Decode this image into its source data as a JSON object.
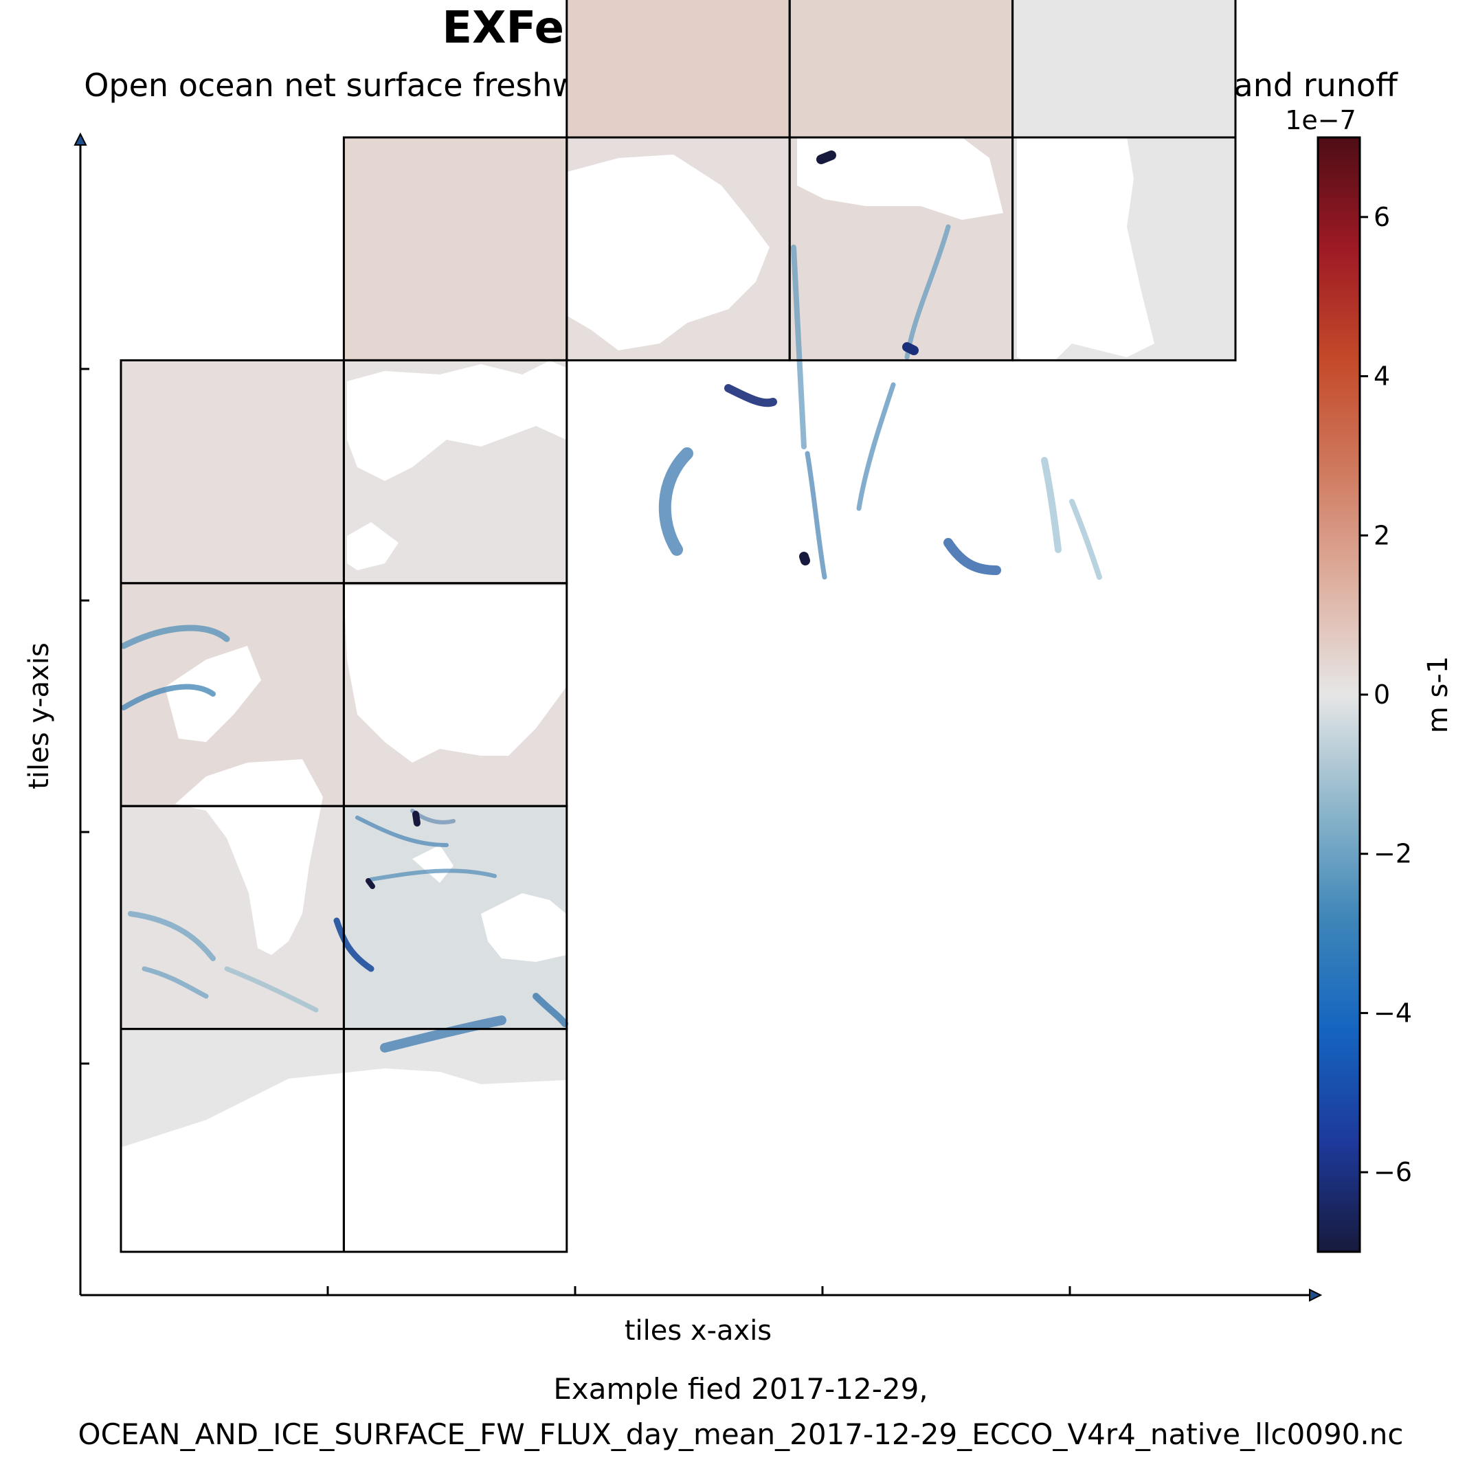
{
  "chart_data": {
    "type": "heatmap",
    "title": "EXFempmr (Daily Mean)",
    "subtitle": "Open ocean net surface freshwater flux from precipitation, evaporation, and runoff",
    "xlabel": "tiles x-axis",
    "ylabel": "tiles y-axis",
    "colorbar": {
      "label": "m s-1",
      "offset_label": "1e−7",
      "range": [
        -7,
        7
      ],
      "ticks": [
        -6,
        -4,
        -2,
        0,
        2,
        4,
        6
      ],
      "tick_labels": [
        "−6",
        "−4",
        "−2",
        "0",
        "2",
        "4",
        "6"
      ],
      "colors": [
        "#171a3d",
        "#1d3a9c",
        "#1565c0",
        "#3f86b8",
        "#8fb7cb",
        "#e6e6e6",
        "#deb0a0",
        "#cf7a5f",
        "#c44a2a",
        "#9e1a25",
        "#4e0d15"
      ]
    },
    "tiles": [
      {
        "col": 0,
        "row": 0,
        "mean": 0.0
      },
      {
        "col": 1,
        "row": 0,
        "mean": 0.0
      },
      {
        "col": 0,
        "row": 1,
        "mean": 0.1
      },
      {
        "col": 1,
        "row": 1,
        "mean": -0.2
      },
      {
        "col": 0,
        "row": 2,
        "mean": 0.3
      },
      {
        "col": 1,
        "row": 2,
        "mean": 0.2
      },
      {
        "col": 0,
        "row": 3,
        "mean": 0.2
      },
      {
        "col": 1,
        "row": 3,
        "mean": 0.1
      },
      {
        "col": 1,
        "row": 4,
        "mean": 0.4
      },
      {
        "col": 2,
        "row": 4,
        "mean": 0.2
      },
      {
        "col": 3,
        "row": 4,
        "mean": 0.3
      },
      {
        "col": 4,
        "row": 4,
        "mean": 0.0
      },
      {
        "col": 2,
        "row": 5,
        "mean": 0.6
      },
      {
        "col": 3,
        "row": 5,
        "mean": 0.5
      },
      {
        "col": 4,
        "row": 5,
        "mean": 0.0
      }
    ],
    "grid": false
  },
  "caption_lines": [
    "Example fied 2017-12-29,",
    "OCEAN_AND_ICE_SURFACE_FW_FLUX_day_mean_2017-12-29_ECCO_V4r4_native_llc0090.nc"
  ]
}
